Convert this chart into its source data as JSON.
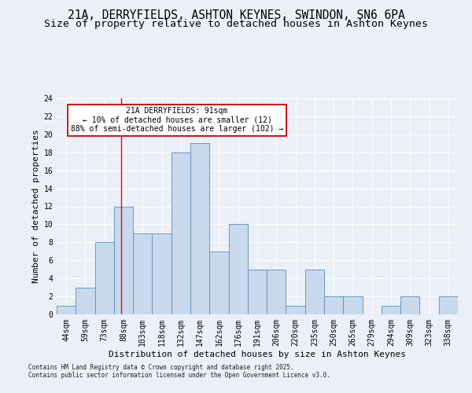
{
  "title_line1": "21A, DERRYFIELDS, ASHTON KEYNES, SWINDON, SN6 6PA",
  "title_line2": "Size of property relative to detached houses in Ashton Keynes",
  "xlabel": "Distribution of detached houses by size in Ashton Keynes",
  "ylabel": "Number of detached properties",
  "footer": "Contains HM Land Registry data © Crown copyright and database right 2025.\nContains public sector information licensed under the Open Government Licence v3.0.",
  "categories": [
    "44sqm",
    "59sqm",
    "73sqm",
    "88sqm",
    "103sqm",
    "118sqm",
    "132sqm",
    "147sqm",
    "162sqm",
    "176sqm",
    "191sqm",
    "206sqm",
    "220sqm",
    "235sqm",
    "250sqm",
    "265sqm",
    "279sqm",
    "294sqm",
    "309sqm",
    "323sqm",
    "338sqm"
  ],
  "values": [
    1,
    3,
    8,
    12,
    9,
    9,
    18,
    19,
    7,
    10,
    5,
    5,
    1,
    5,
    2,
    2,
    0,
    1,
    2,
    0,
    2
  ],
  "bar_color": "#c9d9ed",
  "bar_edge_color": "#5b8db8",
  "bar_width": 1.0,
  "ylim": [
    0,
    24
  ],
  "yticks": [
    0,
    2,
    4,
    6,
    8,
    10,
    12,
    14,
    16,
    18,
    20,
    22,
    24
  ],
  "red_line_x": 2.87,
  "annotation_text": "21A DERRYFIELDS: 91sqm\n← 10% of detached houses are smaller (12)\n88% of semi-detached houses are larger (102) →",
  "annotation_box_color": "#ffffff",
  "annotation_box_edge_color": "#cc0000",
  "bg_color": "#eaeff8",
  "plot_bg_color": "#eaeff8",
  "grid_color": "#ffffff",
  "title_fontsize": 10.5,
  "subtitle_fontsize": 9.5,
  "axis_label_fontsize": 8,
  "tick_fontsize": 7,
  "footer_fontsize": 5.5
}
